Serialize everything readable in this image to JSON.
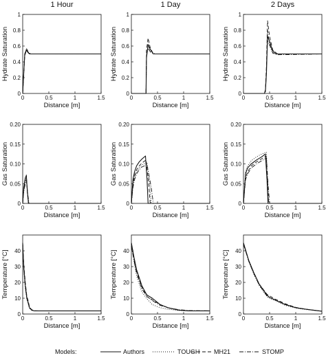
{
  "figure": {
    "column_titles": [
      "1 Hour",
      "1 Day",
      "2 Days"
    ],
    "legend": {
      "title": "Models:",
      "entries": [
        {
          "name": "Authors",
          "style": "solid"
        },
        {
          "name": "TOUGH",
          "style": "dotted"
        },
        {
          "name": "MH21",
          "style": "dashed"
        },
        {
          "name": "STOMP",
          "style": "dashdot"
        }
      ]
    }
  },
  "chart_data": [
    {
      "type": "line",
      "title": "1 Hour",
      "xlabel": "Distance [m]",
      "ylabel": "Hydrate Saturation",
      "xlim": [
        0,
        1.5
      ],
      "ylim": [
        0,
        1
      ],
      "xticks": [
        "0",
        "0.5",
        "1",
        "1.5"
      ],
      "yticks": [
        "0",
        "0.2",
        "0.4",
        "0.6",
        "0.8",
        "1"
      ],
      "series": [
        {
          "name": "Authors",
          "x": [
            0,
            0.04,
            0.07,
            0.1,
            0.13,
            0.2,
            1.5
          ],
          "y": [
            0,
            0.5,
            0.55,
            0.52,
            0.5,
            0.5,
            0.5
          ]
        },
        {
          "name": "TOUGH",
          "x": [
            0,
            0.04,
            0.07,
            0.1,
            0.14,
            0.2,
            1.5
          ],
          "y": [
            0,
            0.5,
            0.57,
            0.53,
            0.5,
            0.5,
            0.5
          ]
        },
        {
          "name": "MH21",
          "x": [
            0,
            0.04,
            0.08,
            0.11,
            0.15,
            0.2,
            1.5
          ],
          "y": [
            0,
            0.48,
            0.56,
            0.52,
            0.5,
            0.5,
            0.5
          ]
        },
        {
          "name": "STOMP",
          "x": [
            0,
            0.04,
            0.07,
            0.11,
            0.15,
            0.2,
            1.5
          ],
          "y": [
            0,
            0.5,
            0.54,
            0.51,
            0.5,
            0.5,
            0.5
          ]
        }
      ]
    },
    {
      "type": "line",
      "title": "1 Day",
      "xlabel": "Distance [m]",
      "ylabel": "Hydrate Saturation",
      "xlim": [
        0,
        1.5
      ],
      "ylim": [
        0,
        1
      ],
      "xticks": [
        "0",
        "0.5",
        "1",
        "1.5"
      ],
      "yticks": [
        "0",
        "0.2",
        "0.4",
        "0.6",
        "0.8",
        "1"
      ],
      "series": [
        {
          "name": "Authors",
          "x": [
            0,
            0.28,
            0.29,
            0.32,
            0.36,
            0.42,
            0.5,
            1.5
          ],
          "y": [
            0,
            0,
            0.45,
            0.62,
            0.56,
            0.5,
            0.5,
            0.5
          ]
        },
        {
          "name": "TOUGH",
          "x": [
            0,
            0.28,
            0.29,
            0.32,
            0.37,
            0.45,
            1.5
          ],
          "y": [
            0,
            0,
            0.5,
            0.6,
            0.53,
            0.5,
            0.5
          ]
        },
        {
          "name": "MH21",
          "x": [
            0,
            0.28,
            0.29,
            0.32,
            0.36,
            0.42,
            0.5,
            1.5
          ],
          "y": [
            0,
            0,
            0.55,
            0.7,
            0.58,
            0.5,
            0.5,
            0.5
          ]
        },
        {
          "name": "STOMP",
          "x": [
            0,
            0.28,
            0.29,
            0.32,
            0.37,
            0.45,
            1.5
          ],
          "y": [
            0,
            0,
            0.48,
            0.57,
            0.52,
            0.5,
            0.5
          ]
        }
      ]
    },
    {
      "type": "line",
      "title": "2 Days",
      "xlabel": "Distance [m]",
      "ylabel": "Hydrate Saturation",
      "xlim": [
        0,
        1.5
      ],
      "ylim": [
        0,
        1
      ],
      "xticks": [
        "0",
        "0.5",
        "1",
        "1.5"
      ],
      "yticks": [
        "0",
        "0.2",
        "0.4",
        "0.6",
        "0.8",
        "1"
      ],
      "series": [
        {
          "name": "Authors",
          "x": [
            0,
            0.4,
            0.42,
            0.44,
            0.46,
            0.5,
            0.55,
            0.62,
            0.7,
            1.5
          ],
          "y": [
            0,
            0,
            0.03,
            0.25,
            0.72,
            0.66,
            0.55,
            0.5,
            0.5,
            0.5
          ]
        },
        {
          "name": "TOUGH",
          "x": [
            0,
            0.4,
            0.42,
            0.44,
            0.46,
            0.5,
            0.56,
            0.65,
            1.5
          ],
          "y": [
            0,
            0,
            0.04,
            0.3,
            0.68,
            0.6,
            0.52,
            0.5,
            0.5
          ]
        },
        {
          "name": "MH21",
          "x": [
            0,
            0.4,
            0.42,
            0.44,
            0.46,
            0.5,
            0.56,
            0.65,
            1.5
          ],
          "y": [
            0,
            0,
            0.05,
            0.35,
            0.92,
            0.72,
            0.55,
            0.5,
            0.5
          ]
        },
        {
          "name": "STOMP",
          "x": [
            0,
            0.4,
            0.42,
            0.44,
            0.46,
            0.5,
            0.56,
            0.65,
            1.5
          ],
          "y": [
            0,
            0,
            0.02,
            0.3,
            0.8,
            0.62,
            0.51,
            0.49,
            0.5
          ]
        }
      ]
    },
    {
      "type": "line",
      "title": "",
      "xlabel": "Distance [m]",
      "ylabel": "Gas Saturation",
      "xlim": [
        0,
        1.5
      ],
      "ylim": [
        0,
        0.2
      ],
      "xticks": [
        "0",
        "0.5",
        "1",
        "1.5"
      ],
      "yticks": [
        "0",
        "0.05",
        "0.10",
        "0.15",
        "0.20"
      ],
      "series": [
        {
          "name": "Authors",
          "x": [
            0,
            0.02,
            0.05,
            0.07,
            0.09,
            0.11,
            1.5
          ],
          "y": [
            0,
            0.04,
            0.065,
            0.07,
            0.03,
            0,
            0
          ]
        },
        {
          "name": "TOUGH",
          "x": [
            0,
            0.02,
            0.05,
            0.07,
            0.1,
            0.12,
            1.5
          ],
          "y": [
            0,
            0.03,
            0.055,
            0.06,
            0.02,
            0,
            0
          ]
        },
        {
          "name": "MH21",
          "x": [
            0,
            0.02,
            0.05,
            0.07,
            0.09,
            0.11,
            1.5
          ],
          "y": [
            0,
            0.035,
            0.06,
            0.072,
            0.025,
            0,
            0
          ]
        },
        {
          "name": "STOMP",
          "x": [
            0,
            0.02,
            0.05,
            0.07,
            0.1,
            0.12,
            1.5
          ],
          "y": [
            0,
            0.03,
            0.05,
            0.058,
            0.02,
            0,
            0
          ]
        }
      ]
    },
    {
      "type": "line",
      "title": "",
      "xlabel": "Distance [m]",
      "ylabel": "Gas Saturation",
      "xlim": [
        0,
        1.5
      ],
      "ylim": [
        0,
        0.2
      ],
      "xticks": [
        "0",
        "0.5",
        "1",
        "1.5"
      ],
      "yticks": [
        "0",
        "0.05",
        "0.10",
        "0.15",
        "0.20"
      ],
      "series": [
        {
          "name": "Authors",
          "x": [
            0,
            0.03,
            0.06,
            0.1,
            0.15,
            0.2,
            0.27,
            0.3,
            0.32,
            1.5
          ],
          "y": [
            0,
            0.06,
            0.08,
            0.095,
            0.105,
            0.112,
            0.12,
            0.06,
            0,
            0
          ]
        },
        {
          "name": "TOUGH",
          "x": [
            0,
            0.03,
            0.06,
            0.1,
            0.15,
            0.2,
            0.3,
            0.35,
            0.38,
            1.5
          ],
          "y": [
            0,
            0.045,
            0.065,
            0.08,
            0.09,
            0.097,
            0.104,
            0.05,
            0,
            0
          ]
        },
        {
          "name": "MH21",
          "x": [
            0,
            0.03,
            0.06,
            0.1,
            0.15,
            0.2,
            0.28,
            0.33,
            0.36,
            1.5
          ],
          "y": [
            0,
            0.05,
            0.07,
            0.085,
            0.095,
            0.102,
            0.11,
            0.05,
            0,
            0
          ]
        },
        {
          "name": "STOMP",
          "x": [
            0,
            0.03,
            0.06,
            0.1,
            0.15,
            0.2,
            0.3,
            0.38,
            0.42,
            1.5
          ],
          "y": [
            0,
            0.04,
            0.06,
            0.075,
            0.085,
            0.092,
            0.098,
            0.04,
            0,
            0
          ]
        }
      ]
    },
    {
      "type": "line",
      "title": "",
      "xlabel": "Distance [m]",
      "ylabel": "Gas Saturation",
      "xlim": [
        0,
        1.5
      ],
      "ylim": [
        0,
        0.2
      ],
      "xticks": [
        "0",
        "0.5",
        "1",
        "1.5"
      ],
      "yticks": [
        "0",
        "0.05",
        "0.10",
        "0.15",
        "0.20"
      ],
      "series": [
        {
          "name": "Authors",
          "x": [
            0,
            0.04,
            0.08,
            0.15,
            0.25,
            0.35,
            0.42,
            0.45,
            0.47,
            1.5
          ],
          "y": [
            0,
            0.075,
            0.09,
            0.1,
            0.11,
            0.118,
            0.125,
            0.06,
            0,
            0
          ]
        },
        {
          "name": "TOUGH",
          "x": [
            0,
            0.04,
            0.08,
            0.15,
            0.25,
            0.35,
            0.44,
            0.46,
            0.48,
            1.5
          ],
          "y": [
            0,
            0.08,
            0.095,
            0.108,
            0.118,
            0.125,
            0.13,
            0.06,
            0,
            0
          ]
        },
        {
          "name": "MH21",
          "x": [
            0,
            0.04,
            0.08,
            0.15,
            0.25,
            0.35,
            0.43,
            0.46,
            0.48,
            1.5
          ],
          "y": [
            0,
            0.065,
            0.08,
            0.095,
            0.105,
            0.113,
            0.12,
            0.055,
            0,
            0
          ]
        },
        {
          "name": "STOMP",
          "x": [
            0,
            0.04,
            0.08,
            0.15,
            0.25,
            0.35,
            0.44,
            0.47,
            0.5,
            1.5
          ],
          "y": [
            0,
            0.06,
            0.075,
            0.09,
            0.1,
            0.108,
            0.115,
            0.05,
            0,
            0
          ]
        }
      ]
    },
    {
      "type": "line",
      "title": "",
      "xlabel": "Distance [m]",
      "ylabel": "Temperature [°C]",
      "xlim": [
        0,
        1.5
      ],
      "ylim": [
        0,
        50
      ],
      "xticks": [
        "0",
        "0.5",
        "1",
        "1.5"
      ],
      "yticks": [
        "0",
        "10",
        "20",
        "30",
        "40"
      ],
      "series": [
        {
          "name": "Authors",
          "x": [
            0,
            0.02,
            0.05,
            0.08,
            0.1,
            0.13,
            0.17,
            0.22,
            0.3,
            1.5
          ],
          "y": [
            45,
            30,
            18,
            10,
            8,
            4,
            2.5,
            2,
            2,
            2
          ]
        },
        {
          "name": "TOUGH",
          "x": [
            0,
            0.02,
            0.05,
            0.08,
            0.1,
            0.13,
            0.17,
            0.22,
            0.3,
            1.5
          ],
          "y": [
            45,
            28,
            16,
            9,
            7,
            3.5,
            2.5,
            2,
            2,
            2
          ]
        },
        {
          "name": "MH21",
          "x": [
            0,
            0.02,
            0.05,
            0.08,
            0.1,
            0.13,
            0.17,
            0.22,
            0.3,
            1.5
          ],
          "y": [
            45,
            32,
            20,
            11,
            9,
            4.5,
            2.8,
            2.1,
            2,
            2
          ]
        },
        {
          "name": "STOMP",
          "x": [
            0,
            0.02,
            0.05,
            0.08,
            0.1,
            0.13,
            0.17,
            0.22,
            0.3,
            1.5
          ],
          "y": [
            45,
            29,
            17,
            9.5,
            7.5,
            3.8,
            2.5,
            2,
            2,
            2
          ]
        }
      ]
    },
    {
      "type": "line",
      "title": "",
      "xlabel": "Distance [m]",
      "ylabel": "Temperature [°C]",
      "xlim": [
        0,
        1.5
      ],
      "ylim": [
        0,
        50
      ],
      "xticks": [
        "0",
        "0.5",
        "1",
        "1.5"
      ],
      "yticks": [
        "0",
        "10",
        "20",
        "30",
        "40"
      ],
      "series": [
        {
          "name": "Authors",
          "x": [
            0,
            0.05,
            0.1,
            0.2,
            0.28,
            0.3,
            0.4,
            0.55,
            0.7,
            0.9,
            1.1,
            1.5
          ],
          "y": [
            45,
            36,
            28,
            18,
            13,
            12,
            10,
            6,
            4,
            2.5,
            2,
            2
          ]
        },
        {
          "name": "TOUGH",
          "x": [
            0,
            0.05,
            0.1,
            0.2,
            0.3,
            0.4,
            0.55,
            0.7,
            0.9,
            1.1,
            1.5
          ],
          "y": [
            44,
            33,
            24,
            14,
            9.5,
            6,
            4,
            3,
            2.2,
            2,
            2
          ]
        },
        {
          "name": "MH21",
          "x": [
            0,
            0.05,
            0.1,
            0.2,
            0.28,
            0.3,
            0.4,
            0.55,
            0.7,
            0.9,
            1.1,
            1.5
          ],
          "y": [
            45,
            35,
            27,
            17,
            12,
            11,
            9,
            6,
            4,
            2.6,
            2,
            2
          ]
        },
        {
          "name": "STOMP",
          "x": [
            0,
            0.05,
            0.1,
            0.2,
            0.3,
            0.4,
            0.55,
            0.7,
            0.9,
            1.1,
            1.5
          ],
          "y": [
            43,
            34,
            26,
            16,
            11,
            8.5,
            5.5,
            4,
            2.8,
            2.2,
            2
          ]
        }
      ]
    },
    {
      "type": "line",
      "title": "",
      "xlabel": "Distance [m]",
      "ylabel": "Temperature [°C]",
      "xlim": [
        0,
        1.5
      ],
      "ylim": [
        0,
        50
      ],
      "xticks": [
        "0",
        "0.5",
        "1",
        "1.5"
      ],
      "yticks": [
        "0",
        "10",
        "20",
        "30",
        "40"
      ],
      "series": [
        {
          "name": "Authors",
          "x": [
            0,
            0.1,
            0.2,
            0.3,
            0.45,
            0.5,
            0.6,
            0.8,
            1.0,
            1.2,
            1.5
          ],
          "y": [
            45,
            34,
            26,
            19,
            12,
            10.5,
            9,
            6,
            4,
            3,
            1.8
          ]
        },
        {
          "name": "TOUGH",
          "x": [
            0,
            0.1,
            0.2,
            0.3,
            0.45,
            0.5,
            0.6,
            0.8,
            1.0,
            1.2,
            1.5
          ],
          "y": [
            45,
            33,
            25,
            18,
            11,
            10,
            8.5,
            5.5,
            3.8,
            2.8,
            1.8
          ]
        },
        {
          "name": "MH21",
          "x": [
            0,
            0.1,
            0.2,
            0.3,
            0.45,
            0.5,
            0.6,
            0.8,
            1.0,
            1.2,
            1.5
          ],
          "y": [
            45,
            34,
            26,
            19,
            12.5,
            11.5,
            9.5,
            6.5,
            4.2,
            3,
            1.8
          ]
        },
        {
          "name": "STOMP",
          "x": [
            0,
            0.1,
            0.2,
            0.3,
            0.45,
            0.5,
            0.6,
            0.8,
            1.0,
            1.2,
            1.5
          ],
          "y": [
            44,
            33.5,
            25.5,
            18.5,
            11.5,
            10.5,
            9,
            6,
            4,
            3,
            1.8
          ]
        }
      ]
    }
  ]
}
